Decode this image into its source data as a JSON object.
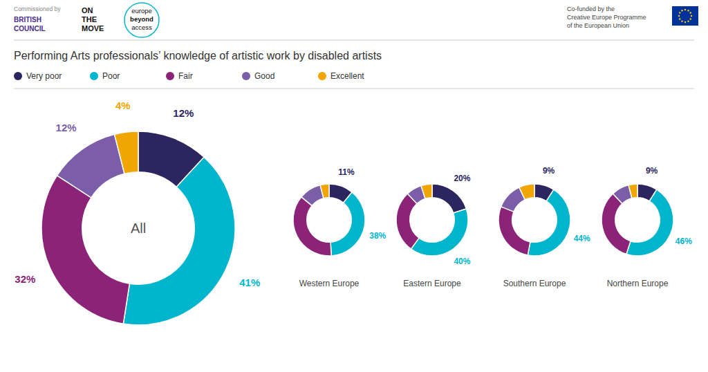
{
  "chart_data": {
    "type": "donut",
    "title": "Performing Arts professionals’ knowledge of artistic work by disabled artists",
    "categories": [
      "Very poor",
      "Poor",
      "Fair",
      "Good",
      "Excellent"
    ],
    "colors": [
      "#2d2560",
      "#00b5cc",
      "#8b2378",
      "#7b5ea7",
      "#f0a500"
    ],
    "legend": "top",
    "data_labels": true,
    "series": [
      {
        "name": "All",
        "values": [
          12,
          41,
          32,
          12,
          4
        ],
        "value_labels": [
          "12%",
          "41%",
          "32%",
          "12%",
          "4%"
        ]
      },
      {
        "name": "Western Europe",
        "values": [
          11,
          38,
          37,
          10,
          4
        ],
        "value_labels": [
          "11%",
          "38%",
          null,
          null,
          null
        ]
      },
      {
        "name": "Eastern Europe",
        "values": [
          20,
          40,
          28,
          7,
          5
        ],
        "value_labels": [
          "20%",
          "40%",
          null,
          null,
          null
        ]
      },
      {
        "name": "Southern Europe",
        "values": [
          9,
          44,
          28,
          12,
          7
        ],
        "value_labels": [
          "9%",
          "44%",
          null,
          null,
          null
        ]
      },
      {
        "name": "Northern Europe",
        "values": [
          9,
          46,
          33,
          8,
          4
        ],
        "value_labels": [
          "9%",
          "46%",
          null,
          null,
          null
        ]
      }
    ],
    "annotations": [
      "Commissioned by",
      "BRITISH",
      "COUNCIL",
      "ON",
      "THE",
      "MOVE",
      "europe",
      "beyond",
      "access",
      "Co-funded by the",
      "Creative Europe Programme",
      "of the European Union"
    ]
  }
}
